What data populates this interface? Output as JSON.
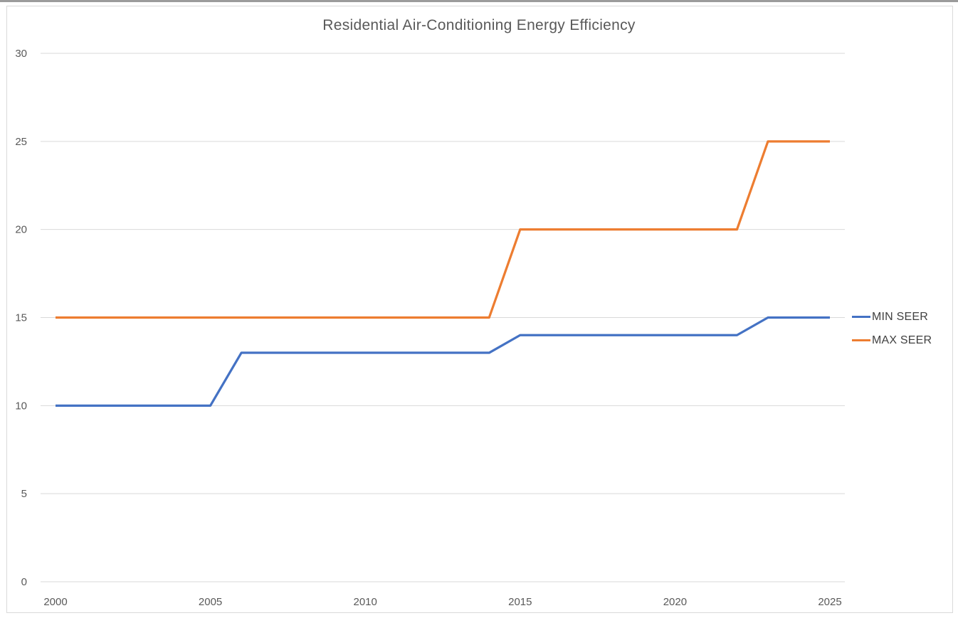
{
  "chart_data": {
    "type": "line",
    "title": "Residential Air-Conditioning Energy Efficiency",
    "xlabel": "",
    "ylabel": "",
    "x_ticks": [
      2000,
      2005,
      2010,
      2015,
      2020,
      2025
    ],
    "y_ticks": [
      0,
      5,
      10,
      15,
      20,
      25,
      30
    ],
    "xlim": [
      2000,
      2025
    ],
    "ylim": [
      0,
      30
    ],
    "grid": "horizontal",
    "legend_position": "right",
    "series": [
      {
        "name": "MIN SEER",
        "color": "#4472C4",
        "points": [
          [
            2000,
            10
          ],
          [
            2005,
            10
          ],
          [
            2006,
            13
          ],
          [
            2014,
            13
          ],
          [
            2015,
            14
          ],
          [
            2022,
            14
          ],
          [
            2023,
            15
          ],
          [
            2025,
            15
          ]
        ]
      },
      {
        "name": "MAX SEER",
        "color": "#ED7D31",
        "points": [
          [
            2000,
            15
          ],
          [
            2014,
            15
          ],
          [
            2015,
            20
          ],
          [
            2022,
            20
          ],
          [
            2023,
            25
          ],
          [
            2025,
            25
          ]
        ]
      }
    ]
  },
  "colors": {
    "grid": "#D9D9D9",
    "chart_border": "#D9D9D9",
    "top_edge": "#9B9B9B",
    "axis_text": "#595959",
    "title_text": "#595959",
    "legend_text": "#404040"
  }
}
